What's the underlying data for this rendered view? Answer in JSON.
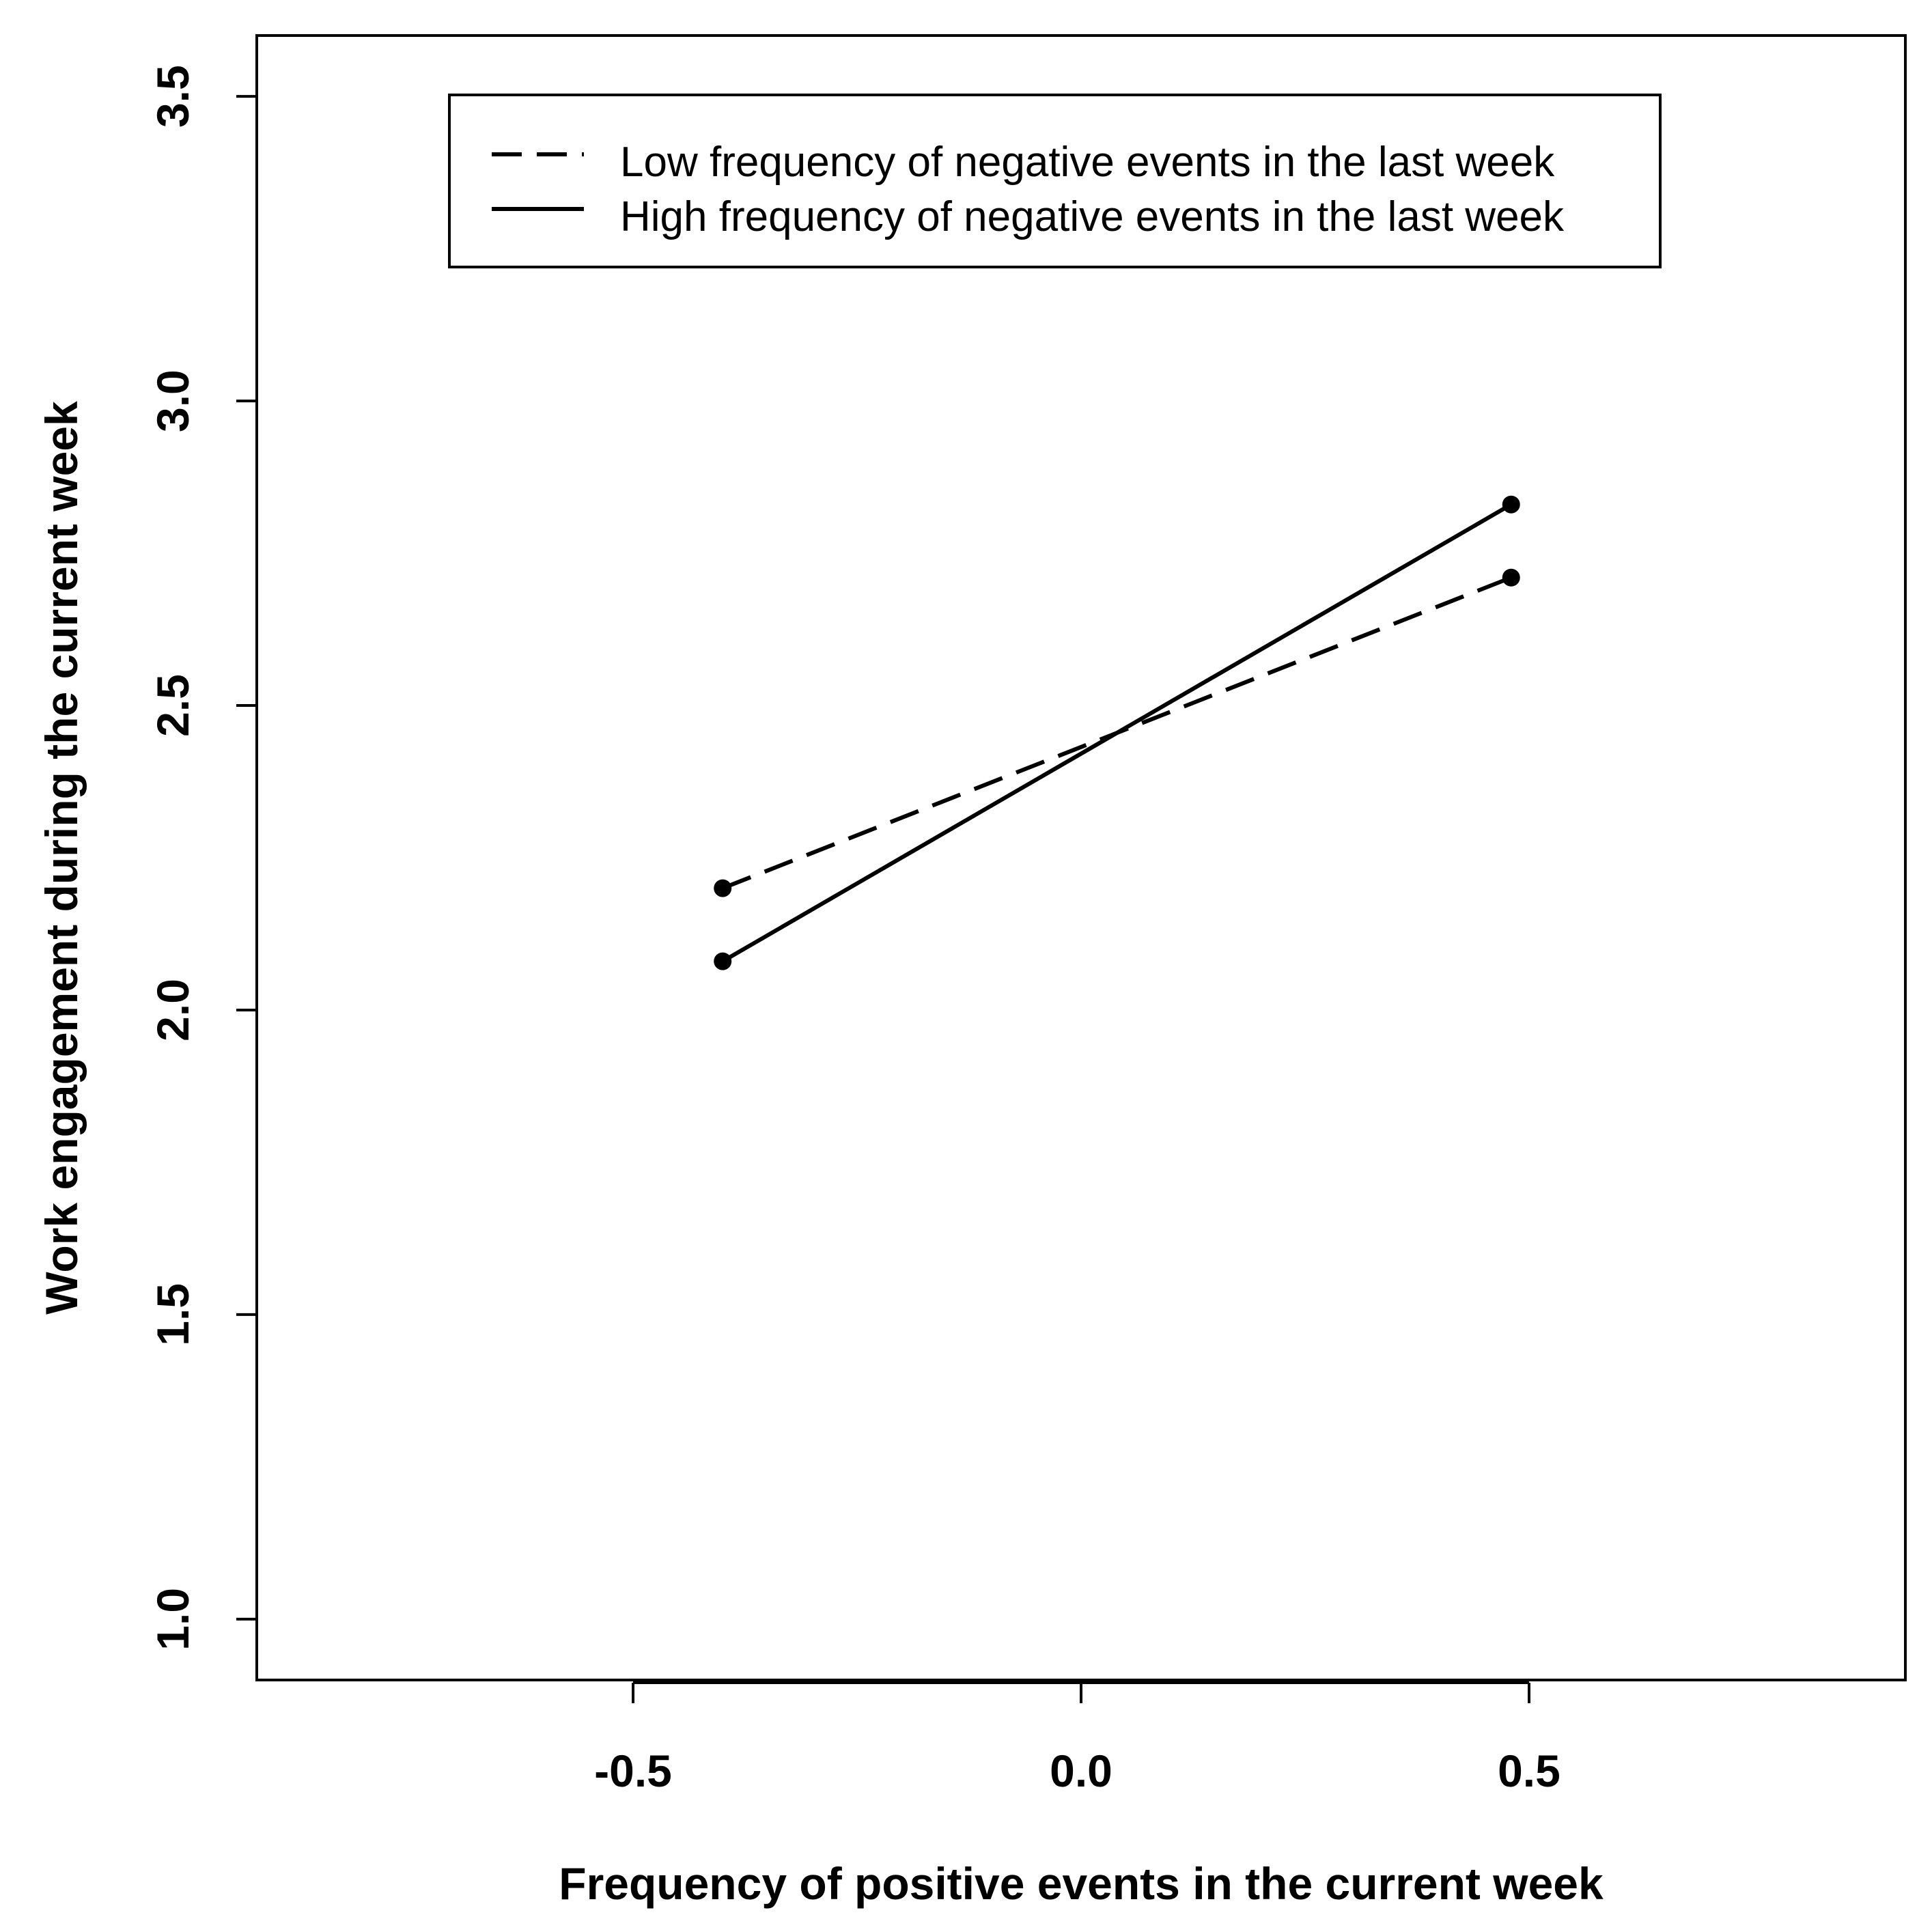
{
  "chart_data": {
    "type": "line",
    "xlabel": "Frequency of positive events in the current week",
    "ylabel": "Work engagement during the current week",
    "xlim": [
      -0.92,
      0.92
    ],
    "ylim": [
      0.9,
      3.6
    ],
    "xticks": [
      -0.5,
      0.0,
      0.5
    ],
    "xtick_labels": [
      "-0.5",
      "0.0",
      "0.5"
    ],
    "yticks": [
      1.0,
      1.5,
      2.0,
      2.5,
      3.0,
      3.5
    ],
    "ytick_labels": [
      "1.0",
      "1.5",
      "2.0",
      "2.5",
      "3.0",
      "3.5"
    ],
    "legend_position": "top",
    "series": [
      {
        "name": "Low frequency of negative events in the last week",
        "line_style": "dashed",
        "color": "#000000",
        "x": [
          -0.4,
          0.48
        ],
        "y": [
          2.2,
          2.71
        ]
      },
      {
        "name": "High frequency of negative events in the last week",
        "line_style": "solid",
        "color": "#000000",
        "x": [
          -0.4,
          0.48
        ],
        "y": [
          2.08,
          2.83
        ]
      }
    ]
  }
}
